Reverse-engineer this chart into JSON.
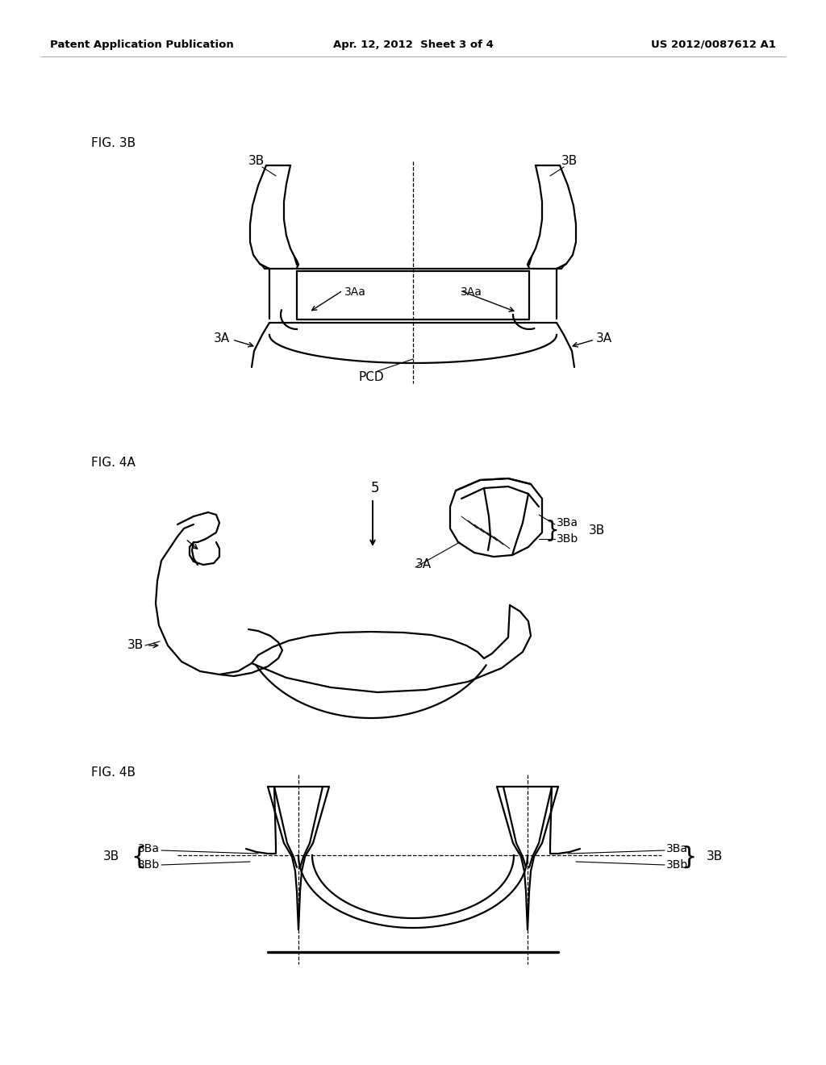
{
  "background_color": "#ffffff",
  "header_left": "Patent Application Publication",
  "header_center": "Apr. 12, 2012  Sheet 3 of 4",
  "header_right": "US 2012/0087612 A1",
  "fig3b_label": "FIG. 3B",
  "fig4a_label": "FIG. 4A",
  "fig4b_label": "FIG. 4B",
  "line_color": "#000000",
  "lw": 1.6,
  "lw_thin": 0.8,
  "text_color": "#000000"
}
